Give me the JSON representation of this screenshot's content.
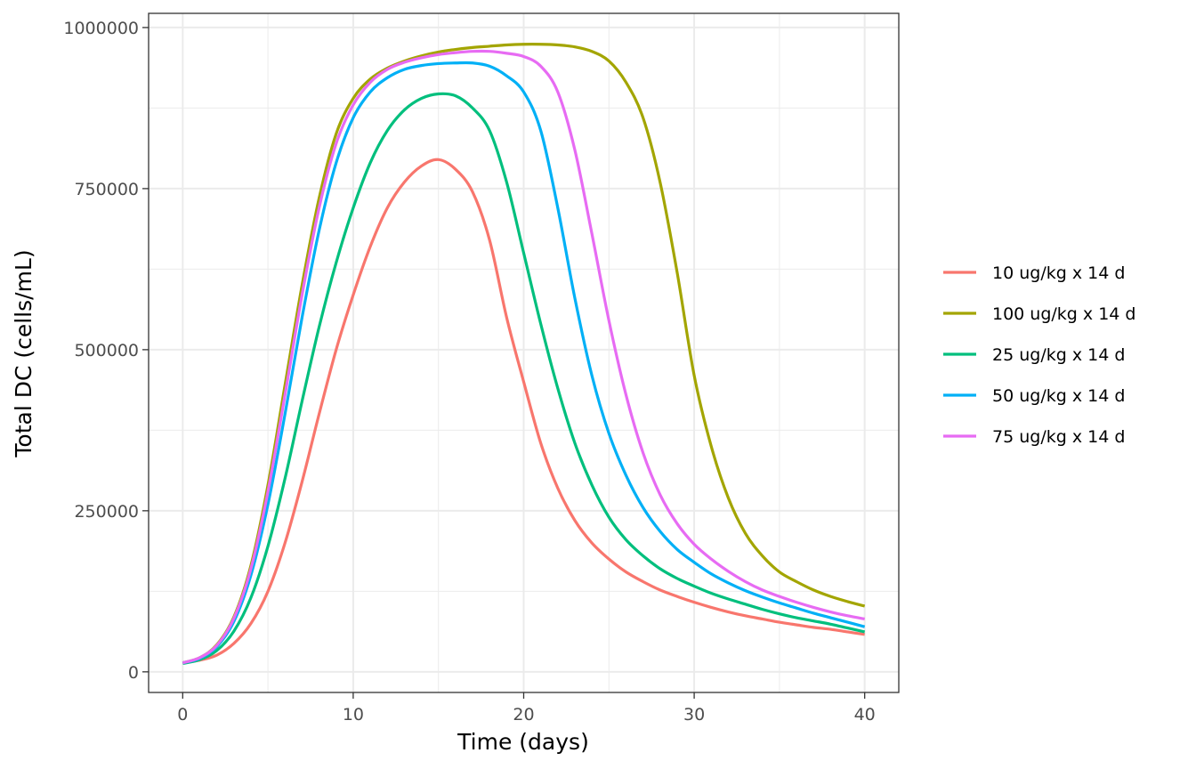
{
  "chart_data": {
    "type": "line",
    "xlabel": "Time (days)",
    "ylabel": "Total DC (cells/mL)",
    "xlim": [
      -2,
      42
    ],
    "ylim": [
      -32000,
      1022000
    ],
    "x_ticks": [
      0,
      10,
      20,
      30,
      40
    ],
    "x_tick_labels": [
      "0",
      "10",
      "20",
      "30",
      "40"
    ],
    "y_ticks": [
      0,
      250000,
      500000,
      750000,
      1000000
    ],
    "y_tick_labels": [
      "0",
      "250000",
      "500000",
      "750000",
      "1000000"
    ],
    "grid": true,
    "theme": "bw",
    "legend_position": "right",
    "x": [
      0,
      1,
      2,
      3,
      4,
      5,
      6,
      7,
      8,
      9,
      10,
      11,
      12,
      13,
      14,
      15,
      16,
      17,
      18,
      19,
      20,
      21,
      22,
      23,
      24,
      25,
      26,
      27,
      28,
      29,
      30,
      31,
      32,
      33,
      34,
      35,
      36,
      37,
      38,
      39,
      40
    ],
    "series": [
      {
        "name": "10 ug/kg x 14 d",
        "color": "#F8766D",
        "values": [
          14000,
          18000,
          26000,
          44000,
          75000,
          125000,
          200000,
          295000,
          400000,
          500000,
          585000,
          660000,
          720000,
          760000,
          785000,
          795000,
          780000,
          745000,
          670000,
          550000,
          450000,
          355000,
          285000,
          235000,
          200000,
          175000,
          155000,
          140000,
          127000,
          117000,
          108000,
          100000,
          93000,
          87000,
          82000,
          77000,
          73000,
          69000,
          66000,
          62000,
          58000
        ]
      },
      {
        "name": "100 ug/kg x 14 d",
        "color": "#A3A500",
        "values": [
          14000,
          22000,
          42000,
          85000,
          165000,
          290000,
          445000,
          600000,
          735000,
          835000,
          890000,
          920000,
          937000,
          948000,
          956000,
          962000,
          966000,
          969000,
          971000,
          973000,
          974000,
          974000,
          973000,
          970000,
          963000,
          948000,
          915000,
          860000,
          760000,
          620000,
          460000,
          350000,
          270000,
          215000,
          180000,
          155000,
          140000,
          127000,
          117000,
          109000,
          102000
        ]
      },
      {
        "name": "25 ug/kg x 14 d",
        "color": "#00BF7D",
        "values": [
          13000,
          19000,
          33000,
          63000,
          115000,
          195000,
          300000,
          420000,
          535000,
          635000,
          720000,
          790000,
          840000,
          872000,
          890000,
          897000,
          894000,
          875000,
          840000,
          760000,
          650000,
          540000,
          440000,
          355000,
          290000,
          240000,
          205000,
          180000,
          160000,
          145000,
          133000,
          122000,
          113000,
          105000,
          97000,
          90000,
          84000,
          79000,
          74000,
          68000,
          62000
        ]
      },
      {
        "name": "50 ug/kg x 14 d",
        "color": "#00B0F6",
        "values": [
          14000,
          21000,
          39000,
          78000,
          150000,
          260000,
          400000,
          550000,
          685000,
          790000,
          860000,
          900000,
          922000,
          935000,
          941000,
          944000,
          945000,
          945000,
          940000,
          925000,
          900000,
          840000,
          720000,
          580000,
          460000,
          370000,
          305000,
          255000,
          218000,
          190000,
          170000,
          152000,
          138000,
          126000,
          116000,
          107000,
          99000,
          91000,
          84000,
          77000,
          70000
        ]
      },
      {
        "name": "75 ug/kg x 14 d",
        "color": "#E76BF3",
        "values": [
          14000,
          22000,
          41000,
          83000,
          160000,
          280000,
          430000,
          585000,
          720000,
          820000,
          880000,
          915000,
          935000,
          946000,
          953000,
          958000,
          961000,
          963000,
          963000,
          960000,
          955000,
          940000,
          900000,
          810000,
          680000,
          545000,
          430000,
          340000,
          275000,
          230000,
          198000,
          175000,
          156000,
          140000,
          127000,
          117000,
          108000,
          100000,
          93000,
          87000,
          82000
        ]
      }
    ]
  }
}
